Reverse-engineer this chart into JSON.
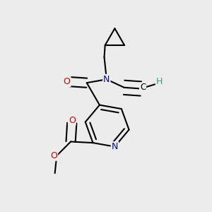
{
  "bg_color": "#ececec",
  "atom_colors": {
    "O": "#cc0000",
    "N": "#0000cc",
    "C": "#000000",
    "H": "#4a9090"
  },
  "bond_color": "#000000",
  "bond_width": 1.5
}
